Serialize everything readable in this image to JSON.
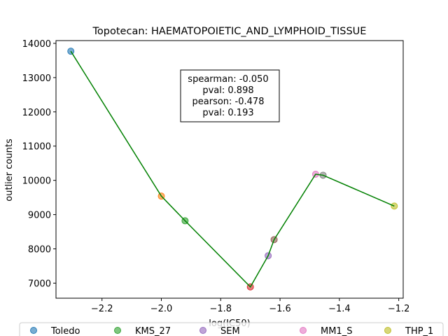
{
  "chart_data": {
    "type": "scatter",
    "title": "Topotecan: HAEMATOPOIETIC_AND_LYMPHOID_TISSUE",
    "xlabel": "log(IC50)",
    "ylabel": "outlier counts",
    "xlim": [
      -2.355,
      -1.185
    ],
    "ylim": [
      6560,
      14080
    ],
    "xticks": [
      -2.2,
      -2.0,
      -1.8,
      -1.6,
      -1.4,
      -1.2
    ],
    "xtick_labels": [
      "−2.2",
      "−2.0",
      "−1.8",
      "−1.6",
      "−1.4",
      "−1.2"
    ],
    "yticks": [
      7000,
      8000,
      9000,
      10000,
      11000,
      12000,
      13000,
      14000
    ],
    "ytick_labels": [
      "7000",
      "8000",
      "9000",
      "10000",
      "11000",
      "12000",
      "13000",
      "14000"
    ],
    "grid": false,
    "legend_position": "bottom",
    "line_color": "#008000",
    "annotation": [
      "spearman: -0.050",
      "pval: 0.898",
      "pearson: -0.478",
      "pval: 0.193"
    ],
    "points": [
      {
        "x": -2.305,
        "y": 13770,
        "color": "#1f77b4"
      },
      {
        "x": -2.0,
        "y": 9540,
        "color": "#ff7f0e"
      },
      {
        "x": -1.92,
        "y": 8820,
        "color": "#2ca02c"
      },
      {
        "x": -1.7,
        "y": 6890,
        "color": "#d62728"
      },
      {
        "x": -1.64,
        "y": 7800,
        "color": "#9467bd"
      },
      {
        "x": -1.62,
        "y": 8270,
        "color": "#8c564b"
      },
      {
        "x": -1.48,
        "y": 10180,
        "color": "#e377c2"
      },
      {
        "x": -1.455,
        "y": 10150,
        "color": "#7f7f7f"
      },
      {
        "x": -1.215,
        "y": 9250,
        "color": "#bcbd22"
      }
    ],
    "legend": [
      {
        "label": "Toledo",
        "color": "#1f77b4"
      },
      {
        "label": "KMS_27",
        "color": "#2ca02c"
      },
      {
        "label": "SEM",
        "color": "#9467bd"
      },
      {
        "label": "MM1_S",
        "color": "#e377c2"
      },
      {
        "label": "THP_1",
        "color": "#bcbd22"
      }
    ]
  }
}
